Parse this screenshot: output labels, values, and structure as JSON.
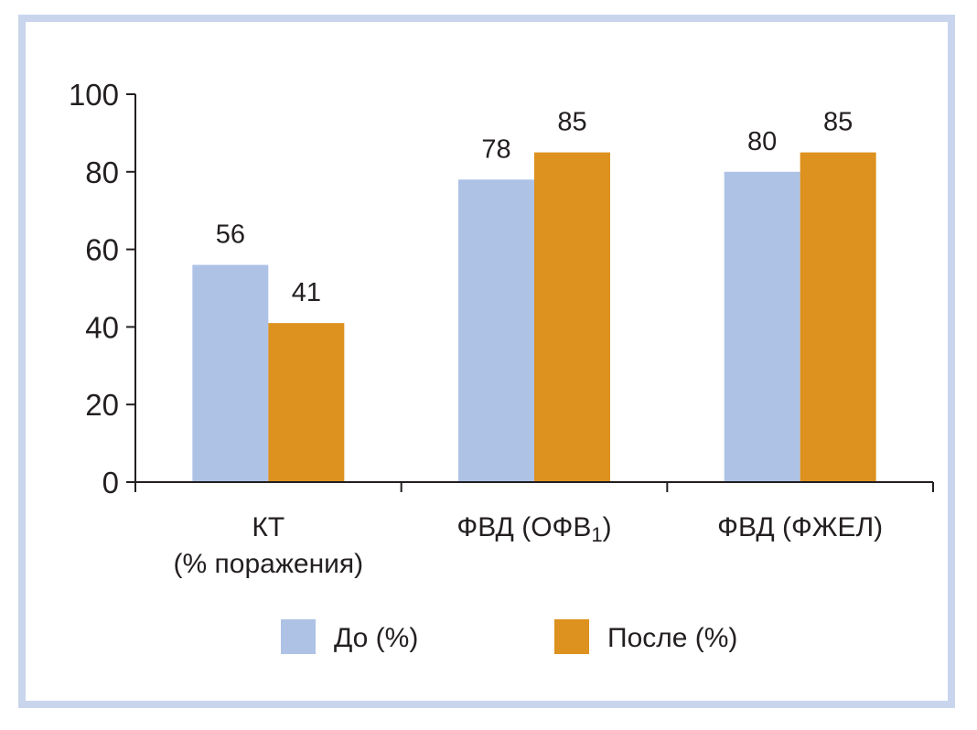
{
  "chart_data": {
    "type": "bar",
    "categories": [
      {
        "line1": "КТ",
        "line2": "(% поражения)",
        "sub": ""
      },
      {
        "line1": "ФВД (ОФВ",
        "line2": "",
        "sub": "1",
        "close": ")"
      },
      {
        "line1": "ФВД (ФЖЕЛ)",
        "line2": "",
        "sub": ""
      }
    ],
    "series": [
      {
        "name": "До (%)",
        "color": "#aec2e6",
        "values": [
          56,
          78,
          80
        ]
      },
      {
        "name": "После (%)",
        "color": "#dd911e",
        "values": [
          41,
          85,
          85
        ]
      }
    ],
    "ylim": [
      0,
      100
    ],
    "yticks": [
      "0",
      "20",
      "40",
      "60",
      "80",
      "100"
    ],
    "title": "",
    "xlabel": "",
    "ylabel": "",
    "legend_position": "bottom",
    "grid": false,
    "frame_color": "#c9d5ec"
  }
}
